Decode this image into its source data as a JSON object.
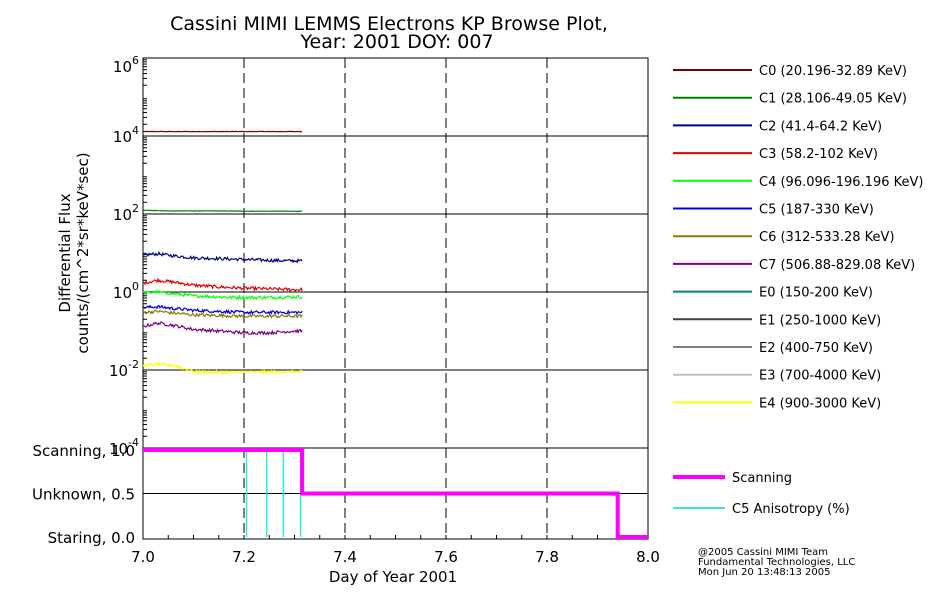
{
  "title_line1": "Cassini MIMI LEMMS Electrons KP Browse Plot,",
  "title_line2": "Year: 2001 DOY: 007",
  "ylabel_line1": "Differential Flux",
  "ylabel_line2": "counts/(cm^2*sr*keV*sec)",
  "xlabel": "Day of Year 2001",
  "credits": [
    "@2005 Cassini MIMI Team",
    "Fundamental Technologies, LLC",
    "Mon Jun 20 13:48:13 2005"
  ],
  "chart_data": [
    {
      "type": "line",
      "panel": "top",
      "title": "Cassini MIMI LEMMS Electrons KP Browse Plot, Year: 2001 DOY: 007",
      "xlabel": "Day of Year 2001",
      "ylabel": "Differential Flux counts/(cm^2*sr*keV*sec)",
      "yscale": "log",
      "xlim": [
        7.0,
        8.0
      ],
      "ylim": [
        0.0001,
        1000000
      ],
      "xticks": [
        7.0,
        7.2,
        7.4,
        7.6,
        7.8,
        8.0
      ],
      "xtick_labels": [
        "7.0",
        "7.2",
        "7.4",
        "7.6",
        "7.8",
        "8.0"
      ],
      "ytick_labels": [
        {
          "base": "10",
          "exp": "6"
        },
        {
          "base": "10",
          "exp": "4"
        },
        {
          "base": "10",
          "exp": "2"
        },
        {
          "base": "10",
          "exp": "0"
        },
        {
          "base": "10",
          "exp": "-2"
        },
        {
          "base": "10",
          "exp": "-4"
        }
      ],
      "grid": {
        "horizontal": "solid",
        "vertical": "dashed"
      },
      "legend_position": "right",
      "series": [
        {
          "name": "C0 (20.196-32.89 KeV)",
          "color": "#800000",
          "x": [
            7.0,
            7.05,
            7.1,
            7.15,
            7.2,
            7.25,
            7.3,
            7.315
          ],
          "y": [
            13000,
            13000,
            13000,
            13000,
            13000,
            13000,
            13000,
            13000
          ]
        },
        {
          "name": "C1 (28.106-49.05 KeV)",
          "color": "#008000",
          "x": [
            7.0,
            7.05,
            7.1,
            7.15,
            7.2,
            7.25,
            7.3,
            7.315
          ],
          "y": [
            125,
            120,
            120,
            120,
            118,
            118,
            118,
            118
          ]
        },
        {
          "name": "C2 (41.4-64.2 KeV)",
          "color": "#000080",
          "x": [
            7.0,
            7.03,
            7.06,
            7.1,
            7.15,
            7.2,
            7.25,
            7.3,
            7.315
          ],
          "y": [
            9,
            9.5,
            8.5,
            7.5,
            7.2,
            6.8,
            6.5,
            6.3,
            6.3
          ]
        },
        {
          "name": "C3 (58.2-102 KeV)",
          "color": "#e00000",
          "x": [
            7.0,
            7.03,
            7.06,
            7.1,
            7.15,
            7.2,
            7.25,
            7.3,
            7.315
          ],
          "y": [
            1.7,
            2.0,
            1.8,
            1.5,
            1.35,
            1.25,
            1.2,
            1.15,
            1.15
          ]
        },
        {
          "name": "C4 (96.096-196.196 KeV)",
          "color": "#00ff00",
          "x": [
            7.0,
            7.03,
            7.06,
            7.1,
            7.15,
            7.2,
            7.25,
            7.3,
            7.315
          ],
          "y": [
            0.95,
            1.0,
            0.9,
            0.8,
            0.75,
            0.72,
            0.72,
            0.75,
            0.75
          ]
        },
        {
          "name": "C5 (187-330 KeV)",
          "color": "#0000e0",
          "x": [
            7.0,
            7.03,
            7.06,
            7.1,
            7.15,
            7.2,
            7.25,
            7.3,
            7.315
          ],
          "y": [
            0.4,
            0.42,
            0.38,
            0.34,
            0.32,
            0.3,
            0.3,
            0.3,
            0.3
          ]
        },
        {
          "name": "C6 (312-533.28 KeV)",
          "color": "#808000",
          "x": [
            7.0,
            7.03,
            7.06,
            7.1,
            7.15,
            7.2,
            7.25,
            7.3,
            7.315
          ],
          "y": [
            0.3,
            0.32,
            0.29,
            0.26,
            0.25,
            0.24,
            0.24,
            0.24,
            0.24
          ]
        },
        {
          "name": "C7 (506.88-829.08 KeV)",
          "color": "#800080",
          "x": [
            7.0,
            7.03,
            7.06,
            7.1,
            7.15,
            7.2,
            7.25,
            7.3,
            7.315
          ],
          "y": [
            0.13,
            0.16,
            0.14,
            0.11,
            0.1,
            0.09,
            0.09,
            0.1,
            0.1
          ]
        },
        {
          "name": "E0 (150-200 KeV)",
          "color": "#008080",
          "x": [],
          "y": []
        },
        {
          "name": "E1 (250-1000 KeV)",
          "color": "#404040",
          "x": [],
          "y": []
        },
        {
          "name": "E2 (400-750 KeV)",
          "color": "#808080",
          "x": [],
          "y": []
        },
        {
          "name": "E3 (700-4000 KeV)",
          "color": "#c0c0c0",
          "x": [],
          "y": []
        },
        {
          "name": "E4 (900-3000 KeV)",
          "color": "#ffff00",
          "x": [
            7.0,
            7.03,
            7.06,
            7.08,
            7.1,
            7.15,
            7.2,
            7.25,
            7.3,
            7.315
          ],
          "y": [
            0.013,
            0.014,
            0.013,
            0.011,
            0.009,
            0.0088,
            0.0088,
            0.009,
            0.009,
            0.009
          ]
        }
      ]
    },
    {
      "type": "line",
      "panel": "bottom",
      "xlabel": "Day of Year 2001",
      "xlim": [
        7.0,
        8.0
      ],
      "ylim": [
        0.0,
        1.0
      ],
      "xticks": [
        7.0,
        7.2,
        7.4,
        7.6,
        7.8,
        8.0
      ],
      "xtick_labels": [
        "7.0",
        "7.2",
        "7.4",
        "7.6",
        "7.8",
        "8.0"
      ],
      "ytick_labels": [
        "Scanning, 1.0",
        "Unknown, 0.5",
        "Staring, 0.0"
      ],
      "legend_position": "right",
      "series": [
        {
          "name": "Scanning",
          "color": "#ff00ff",
          "x": [
            7.0,
            7.315,
            7.315,
            7.94,
            7.94,
            8.0
          ],
          "y": [
            1.0,
            1.0,
            0.5,
            0.5,
            0.0,
            0.0
          ]
        },
        {
          "name": "C5 Anisotropy (%)",
          "color": "#33e6e6",
          "spikes_x": [
            7.205,
            7.245,
            7.278,
            7.312
          ],
          "ymin": 0.0,
          "ymax": 1.0
        }
      ]
    }
  ]
}
